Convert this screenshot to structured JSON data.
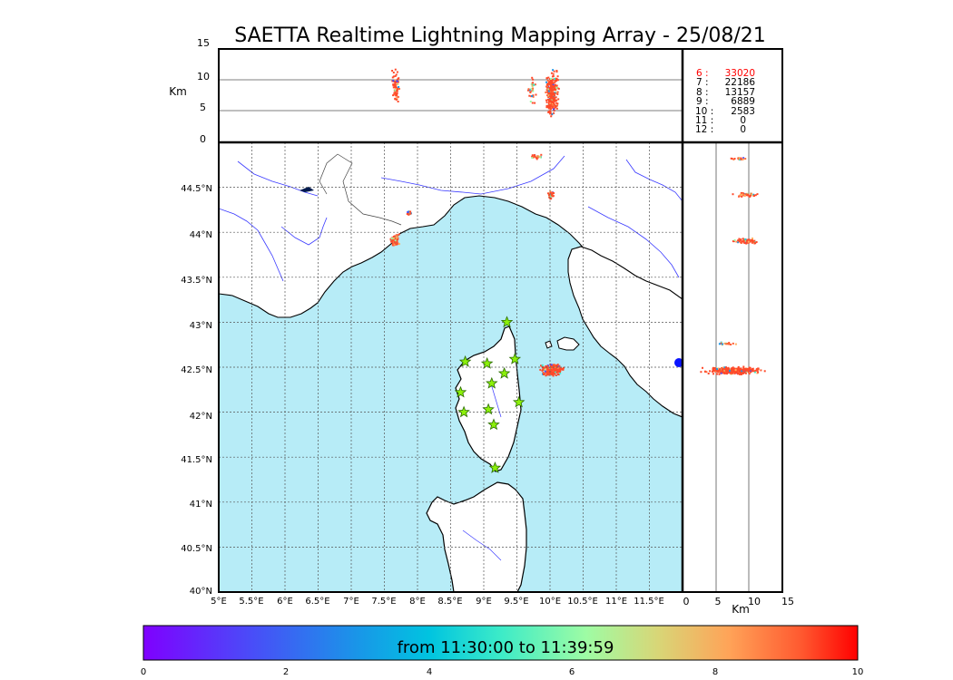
{
  "title": "SAETTA Realtime Lightning Mapping Array - 25/08/21",
  "colors": {
    "sea": "#b7ecf7",
    "land": "#ffffff",
    "coast": "#000000",
    "river": "#3a3aff",
    "border": "#444444",
    "grid": "#555555",
    "star_fill": "#8cf00a",
    "star_stroke": "#2a6b00",
    "stations_red": "#ff0000"
  },
  "top_panel": {
    "unit_label": "Km",
    "y_ticks": [
      "15",
      "10",
      "5",
      "0"
    ]
  },
  "station_counts": [
    {
      "label": "6  :",
      "value": "33020",
      "highlight": true
    },
    {
      "label": "7  :",
      "value": "22186",
      "highlight": false
    },
    {
      "label": "8  :",
      "value": "13157",
      "highlight": false
    },
    {
      "label": "9  :",
      "value": "6889",
      "highlight": false
    },
    {
      "label": "10  :",
      "value": "2583",
      "highlight": false
    },
    {
      "label": "11  :",
      "value": "0",
      "highlight": false
    },
    {
      "label": "12  :",
      "value": "0",
      "highlight": false
    }
  ],
  "map": {
    "lat_labels": [
      "44.5°N",
      "44°N",
      "43.5°N",
      "43°N",
      "42.5°N",
      "42°N",
      "41.5°N",
      "41°N",
      "40.5°N",
      "40°N"
    ],
    "lon_labels": [
      "5°E",
      "5.5°E",
      "6°E",
      "6.5°E",
      "7°E",
      "7.5°E",
      "8°E",
      "8.5°E",
      "9°E",
      "9.5°E",
      "10°E",
      "10.5°E",
      "11°E",
      "11.5°E"
    ],
    "lon_range": [
      5,
      12
    ],
    "lat_range": [
      40,
      45
    ],
    "stations": [
      {
        "lon": 8.72,
        "lat": 42.56
      },
      {
        "lon": 9.35,
        "lat": 43.0
      },
      {
        "lon": 9.05,
        "lat": 42.54
      },
      {
        "lon": 9.47,
        "lat": 42.59
      },
      {
        "lon": 9.31,
        "lat": 42.43
      },
      {
        "lon": 9.12,
        "lat": 42.32
      },
      {
        "lon": 8.65,
        "lat": 42.22
      },
      {
        "lon": 9.53,
        "lat": 42.11
      },
      {
        "lon": 8.7,
        "lat": 42.0
      },
      {
        "lon": 9.07,
        "lat": 42.03
      },
      {
        "lon": 9.15,
        "lat": 41.86
      },
      {
        "lon": 9.17,
        "lat": 41.38
      }
    ]
  },
  "side_panel": {
    "unit_label": "Km",
    "x_ticks": [
      "0",
      "5",
      "10",
      "15"
    ]
  },
  "colorbar": {
    "text": "from 11:30:00 to 11:39:59",
    "ticks": [
      "0",
      "2",
      "4",
      "6",
      "8",
      "10"
    ]
  }
}
